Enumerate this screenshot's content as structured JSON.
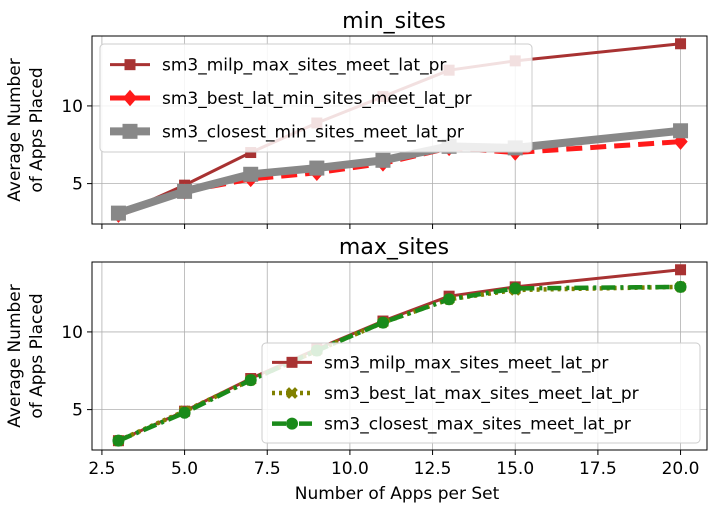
{
  "figure": {
    "xlabel": "Number of Apps per Set",
    "ylabel_line1": "Average Number",
    "ylabel_line2": "of Apps Placed"
  },
  "chart_data": [
    {
      "type": "line",
      "title": "min_sites",
      "xlabel": "",
      "ylabel": "Average Number of Apps Placed",
      "xlim": [
        2.2,
        20.8
      ],
      "ylim": [
        2.4,
        14.5
      ],
      "xticks": [
        2.5,
        5.0,
        7.5,
        10.0,
        12.5,
        15.0,
        17.5,
        20.0
      ],
      "xticklabels": [
        "",
        "",
        "",
        "",
        "",
        "",
        "",
        ""
      ],
      "yticks": [
        5,
        10
      ],
      "yticklabels": [
        "5",
        "10"
      ],
      "grid": true,
      "legend_position": "upper-left",
      "series": [
        {
          "name": "sm3_milp_max_sites_meet_lat_pr",
          "color": "#a83232",
          "linestyle": "solid",
          "marker": "square",
          "x": [
            3,
            5,
            7,
            9,
            11,
            13,
            15,
            20
          ],
          "y": [
            3.0,
            4.9,
            7.0,
            8.9,
            10.6,
            12.3,
            12.9,
            14.0
          ]
        },
        {
          "name": "sm3_best_lat_min_sites_meet_lat_pr",
          "color": "#ff1a1a",
          "linestyle": "dashed",
          "marker": "diamond",
          "x": [
            3,
            5,
            7,
            9,
            11,
            13,
            15,
            20
          ],
          "y": [
            3.0,
            4.5,
            5.3,
            5.7,
            6.3,
            7.3,
            7.0,
            7.7
          ]
        },
        {
          "name": "sm3_closest_min_sites_meet_lat_pr",
          "color": "#888888",
          "linestyle": "solid",
          "marker": "square",
          "x": [
            3,
            5,
            7,
            9,
            11,
            13,
            15,
            20
          ],
          "y": [
            3.1,
            4.5,
            5.6,
            6.0,
            6.5,
            7.4,
            7.3,
            8.4
          ]
        }
      ]
    },
    {
      "type": "line",
      "title": "max_sites",
      "xlabel": "Number of Apps per Set",
      "ylabel": "Average Number of Apps Placed",
      "xlim": [
        2.2,
        20.8
      ],
      "ylim": [
        2.4,
        14.5
      ],
      "xticks": [
        2.5,
        5.0,
        7.5,
        10.0,
        12.5,
        15.0,
        17.5,
        20.0
      ],
      "xticklabels": [
        "2.5",
        "5.0",
        "7.5",
        "10.0",
        "12.5",
        "15.0",
        "17.5",
        "20.0"
      ],
      "yticks": [
        5,
        10
      ],
      "yticklabels": [
        "5",
        "10"
      ],
      "grid": true,
      "legend_position": "lower-right",
      "series": [
        {
          "name": "sm3_milp_max_sites_meet_lat_pr",
          "color": "#a83232",
          "linestyle": "solid",
          "marker": "square",
          "x": [
            3,
            5,
            7,
            9,
            11,
            13,
            15,
            20
          ],
          "y": [
            3.0,
            4.9,
            7.0,
            8.9,
            10.7,
            12.3,
            12.9,
            14.0
          ]
        },
        {
          "name": "sm3_best_lat_max_sites_meet_lat_pr",
          "color": "#808000",
          "linestyle": "dotted",
          "marker": "x",
          "x": [
            3,
            5,
            7,
            9,
            11,
            13,
            15,
            20
          ],
          "y": [
            3.0,
            4.9,
            6.9,
            8.8,
            10.6,
            12.1,
            12.7,
            12.9
          ]
        },
        {
          "name": "sm3_closest_max_sites_meet_lat_pr",
          "color": "#1a8a1a",
          "linestyle": "dashdot",
          "marker": "circle",
          "x": [
            3,
            5,
            7,
            9,
            11,
            13,
            15,
            20
          ],
          "y": [
            3.0,
            4.8,
            6.9,
            8.8,
            10.6,
            12.1,
            12.8,
            12.9
          ]
        }
      ]
    }
  ]
}
